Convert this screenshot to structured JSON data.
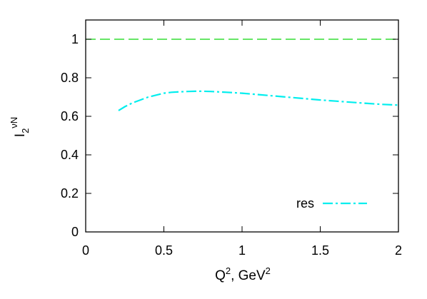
{
  "chart_data": {
    "type": "line",
    "xlabel": {
      "base": "Q",
      "sup": "2",
      "mid": ", GeV",
      "sup2": "2"
    },
    "ylabel": {
      "base": "I",
      "sub": "2",
      "sup": "νN"
    },
    "xlim": [
      0,
      2
    ],
    "ylim": [
      0,
      1.1
    ],
    "xticks": [
      0,
      0.5,
      1,
      1.5,
      2
    ],
    "xtick_labels": [
      "0",
      "0.5",
      "1",
      "1.5",
      "2"
    ],
    "yticks": [
      0,
      0.2,
      0.4,
      0.6,
      0.8,
      1
    ],
    "ytick_labels": [
      "0",
      "0.2",
      "0.4",
      "0.6",
      "0.8",
      "1"
    ],
    "grid": false,
    "legend": {
      "position": "bottom-right"
    },
    "reference_line": {
      "y": 1.0,
      "color": "#33dd33",
      "style": "dashed"
    },
    "series": [
      {
        "name": "res",
        "color": "#00eeee",
        "style": "dash-dot",
        "x": [
          0.21,
          0.25,
          0.3,
          0.35,
          0.4,
          0.45,
          0.5,
          0.55,
          0.6,
          0.65,
          0.7,
          0.75,
          0.8,
          0.9,
          1.0,
          1.1,
          1.2,
          1.3,
          1.4,
          1.5,
          1.6,
          1.7,
          1.8,
          1.9,
          2.0
        ],
        "y": [
          0.63,
          0.65,
          0.67,
          0.685,
          0.7,
          0.71,
          0.72,
          0.725,
          0.727,
          0.729,
          0.73,
          0.73,
          0.729,
          0.725,
          0.72,
          0.713,
          0.706,
          0.699,
          0.692,
          0.685,
          0.679,
          0.673,
          0.667,
          0.662,
          0.658
        ]
      }
    ]
  }
}
